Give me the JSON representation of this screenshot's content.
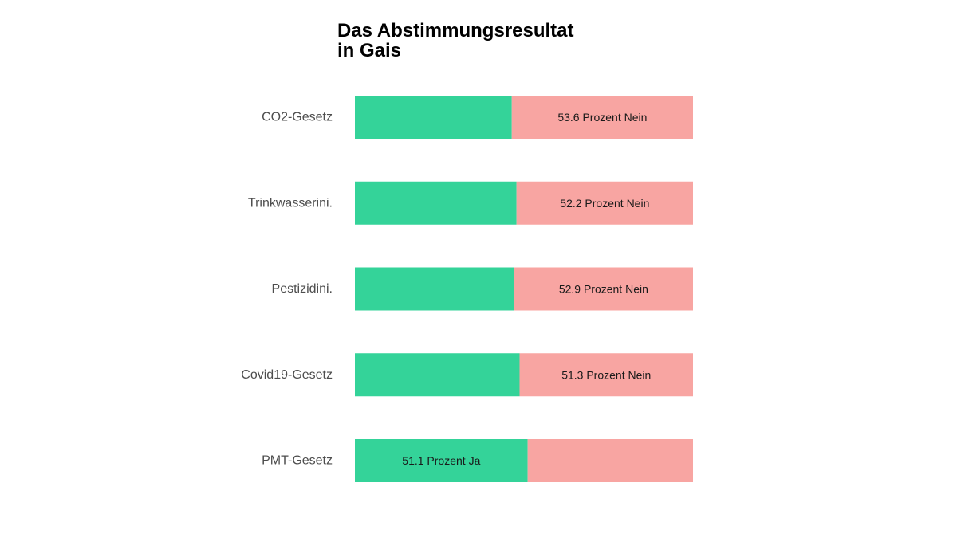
{
  "chart_data": {
    "type": "bar",
    "orientation": "horizontal",
    "stacked": true,
    "title_lines": [
      "Das Abstimmungsresultat",
      "in Gais"
    ],
    "categories": [
      "CO2-Gesetz",
      "Trinkwasserini.",
      "Pestizidini.",
      "Covid19-Gesetz",
      "PMT-Gesetz"
    ],
    "series": [
      {
        "key": "ja",
        "values": [
          46.4,
          47.8,
          47.1,
          48.7,
          51.1
        ],
        "color": "#34d399"
      },
      {
        "key": "nein",
        "values": [
          53.6,
          52.2,
          52.9,
          51.3,
          48.9
        ],
        "color": "#f8a5a2"
      }
    ],
    "bar_labels": [
      {
        "text": "53.6 Prozent Nein",
        "series": "nein"
      },
      {
        "text": "52.2 Prozent Nein",
        "series": "nein"
      },
      {
        "text": "52.9 Prozent Nein",
        "series": "nein"
      },
      {
        "text": "51.3 Prozent Nein",
        "series": "nein"
      },
      {
        "text": "51.1 Prozent Ja",
        "series": "ja"
      }
    ],
    "xlim": [
      0,
      100
    ],
    "grid": false,
    "legend": "none"
  }
}
